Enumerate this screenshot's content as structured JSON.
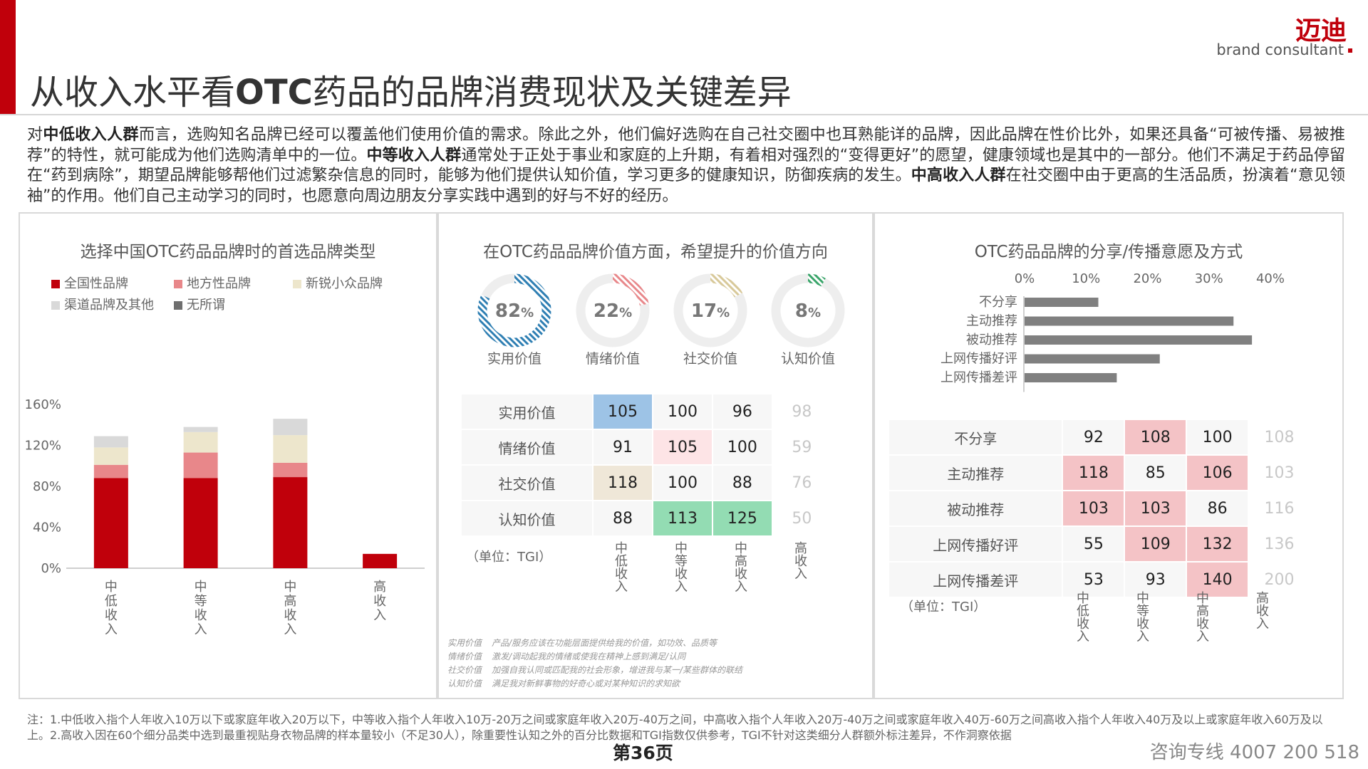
{
  "header": {
    "title_pre": "从收入水平看",
    "title_bold": "OTC",
    "title_post": "药品的品牌消费现状及关键差异",
    "brand_cn": "迈迪",
    "brand_en": "brand consultant",
    "accent": "#c0000b"
  },
  "intro": {
    "p1": "对",
    "b1": "中低收入人群",
    "p2": "而言，选购知名品牌已经可以覆盖他们使用价值的需求。除此之外，他们偏好选购在自己社交圈中也耳熟能详的品牌，因此品牌在性价比外，如果还具备“可被传播、易被推荐”的特性，就可能成为他们选购清单中的一位。",
    "b2": "中等收入人群",
    "p3": "通常处于正处于事业和家庭的上升期，有着相对强烈的“变得更好”的愿望，健康领域也是其中的一部分。他们不满足于药品停留在“药到病除”，期望品牌能够帮他们过滤繁杂信息的同时，能够为他们提供认知价值，学习更多的健康知识，防御疾病的发生。",
    "b3": "中高收入人群",
    "p4": "在社交圈中由于更高的生活品质，扮演着“意见领袖”的作用。他们自己主动学习的同时，也愿意向周边朋友分享实践中遇到的好与不好的经历。"
  },
  "panel1": {
    "title": "选择中国OTC药品品牌时的首选品牌类型",
    "legend": [
      {
        "label": "全国性品牌",
        "color": "#c0000b"
      },
      {
        "label": "地方性品牌",
        "color": "#e8878a"
      },
      {
        "label": "新锐小众品牌",
        "color": "#ede6cc"
      },
      {
        "label": "渠道品牌及其他",
        "color": "#d9d9d9"
      },
      {
        "label": "无所谓",
        "color": "#6f6f6f"
      }
    ]
  },
  "panel2": {
    "title": "在OTC药品品牌价值方面，希望提升的价值方向",
    "donuts": [
      {
        "pct": 82,
        "num": "82",
        "sym": "%",
        "label": "实用价值",
        "color": "#2f7fb3"
      },
      {
        "pct": 22,
        "num": "22",
        "sym": "%",
        "label": "情绪价值",
        "color": "#e8878a"
      },
      {
        "pct": 17,
        "num": "17",
        "sym": "%",
        "label": "社交价值",
        "color": "#d8c99a"
      },
      {
        "pct": 8,
        "num": "8",
        "sym": "%",
        "label": "认知价值",
        "color": "#3aa56a"
      }
    ],
    "table": {
      "rows": [
        {
          "label": "实用价值",
          "values": [
            "105",
            "100",
            "96",
            "98"
          ],
          "colors": [
            "#9dc3e6",
            "",
            "",
            ""
          ]
        },
        {
          "label": "情绪价值",
          "values": [
            "91",
            "105",
            "100",
            "59"
          ],
          "colors": [
            "",
            "#fde4e6",
            "",
            ""
          ]
        },
        {
          "label": "社交价值",
          "values": [
            "118",
            "100",
            "88",
            "76"
          ],
          "colors": [
            "#efe7d8",
            "",
            "",
            ""
          ]
        },
        {
          "label": "认知价值",
          "values": [
            "88",
            "113",
            "125",
            "50"
          ],
          "colors": [
            "",
            "#93dcb3",
            "#93dcb3",
            ""
          ]
        }
      ],
      "unit": "（单位：TGI）",
      "columns": [
        "中低收入",
        "中等收入",
        "中高收入",
        "高收入"
      ]
    },
    "notes": [
      {
        "term": "实用价值",
        "desc": "产品/服务应该在功能层面提供给我的价值，如功效、品质等"
      },
      {
        "term": "情绪价值",
        "desc": "激发/调动起我的情绪或使我在精神上感到满足/认同"
      },
      {
        "term": "社交价值",
        "desc": "加强自我认同或匹配我的社会形象，增进我与某一/某些群体的联结"
      },
      {
        "term": "认知价值",
        "desc": "满足我对新鲜事物的好奇心或对某种知识的求知欲"
      }
    ]
  },
  "panel3": {
    "title": "OTC药品品牌的分享/传播意愿及方式",
    "table": {
      "rows": [
        {
          "label": "不分享",
          "values": [
            "92",
            "108",
            "100",
            "108"
          ],
          "colors": [
            "",
            "#f4c3c6",
            "",
            ""
          ]
        },
        {
          "label": "主动推荐",
          "values": [
            "118",
            "85",
            "106",
            "103"
          ],
          "colors": [
            "#f4c3c6",
            "",
            "#f4c3c6",
            ""
          ]
        },
        {
          "label": "被动推荐",
          "values": [
            "103",
            "103",
            "86",
            "116"
          ],
          "colors": [
            "#f4c3c6",
            "#f4c3c6",
            "",
            ""
          ]
        },
        {
          "label": "上网传播好评",
          "values": [
            "55",
            "109",
            "132",
            "136"
          ],
          "colors": [
            "",
            "#f4c3c6",
            "#f4c3c6",
            ""
          ]
        },
        {
          "label": "上网传播差评",
          "values": [
            "53",
            "93",
            "140",
            "200"
          ],
          "colors": [
            "",
            "",
            "#f4c3c6",
            ""
          ]
        }
      ],
      "unit": "（单位：TGI）",
      "columns": [
        "中低收入",
        "中等收入",
        "中高收入",
        "高收入"
      ]
    }
  },
  "chart_data": [
    {
      "type": "bar",
      "stacked": true,
      "title": "选择中国OTC药品品牌时的首选品牌类型",
      "categories": [
        "中低收入",
        "中等收入",
        "中高收入",
        "高收入"
      ],
      "ylim": [
        0,
        160
      ],
      "yticks": [
        "0%",
        "40%",
        "80%",
        "120%",
        "160%"
      ],
      "series": [
        {
          "name": "全国性品牌",
          "color": "#c0000b",
          "values": [
            88,
            88,
            89,
            14
          ]
        },
        {
          "name": "地方性品牌",
          "color": "#e8878a",
          "values": [
            13,
            25,
            14,
            0
          ]
        },
        {
          "name": "新锐小众品牌",
          "color": "#ede6cc",
          "values": [
            17,
            20,
            27,
            0
          ]
        },
        {
          "name": "渠道品牌及其他",
          "color": "#d9d9d9",
          "values": [
            11,
            5,
            16,
            0
          ]
        },
        {
          "name": "无所谓",
          "color": "#6f6f6f",
          "values": [
            0,
            0,
            0,
            0
          ]
        }
      ],
      "grid": false,
      "legend": "top-left"
    },
    {
      "type": "bar",
      "orientation": "horizontal",
      "title": "OTC药品品牌的分享/传播意愿及方式",
      "categories": [
        "不分享",
        "主动推荐",
        "被动推荐",
        "上网传播好评",
        "上网传播差评"
      ],
      "values": [
        12,
        34,
        37,
        22,
        15
      ],
      "xlim": [
        0,
        40
      ],
      "xticks": [
        "0%",
        "10%",
        "20%",
        "30%",
        "40%"
      ],
      "color": "#808080",
      "grid": false
    }
  ],
  "footer": {
    "note": "注：1.中低收入指个人年收入10万以下或家庭年收入20万以下，中等收入指个人年收入10万-20万之间或家庭年收入20万-40万之间，中高收入指个人年收入20万-40万之间或家庭年收入40万-60万之间高收入指个人年收入40万及以上或家庭年收入60万及以上。2.高收入因在60个细分品类中选到最重视贴身衣物品牌的样本量较小（不足30人），除重要性认知之外的百分比数据和TGI指数仅供参考，TGI不针对这类细分人群额外标注差异，不作洞察依据",
    "page": "第36页",
    "hotline": "咨询专线 4007 200 518"
  }
}
